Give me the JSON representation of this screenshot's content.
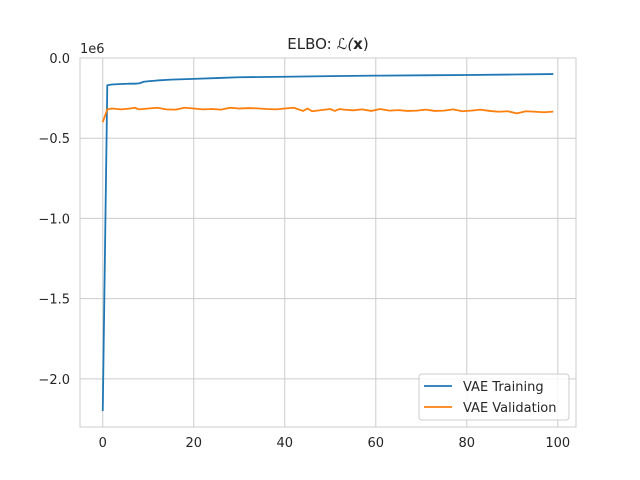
{
  "chart_data": {
    "type": "line",
    "title": "ELBO: ℒ(x)",
    "title_prefix": "ELBO: ",
    "title_math": "ℒ(",
    "title_bold": "x",
    "title_close": ")",
    "xlabel": "",
    "ylabel": "",
    "y_offset_label": "1e6",
    "xlim": [
      -5,
      104
    ],
    "ylim": [
      -2.3,
      0
    ],
    "x_ticks": [
      0,
      20,
      40,
      60,
      80,
      100
    ],
    "x_tick_labels": [
      "0",
      "20",
      "40",
      "60",
      "80",
      "100"
    ],
    "y_ticks": [
      0,
      -0.5,
      -1.0,
      -1.5,
      -2.0
    ],
    "y_tick_labels": [
      "0.0",
      "−0.5",
      "−1.0",
      "−1.5",
      "−2.0"
    ],
    "grid": true,
    "legend_position": "lower-right",
    "series": [
      {
        "name": "VAE Training",
        "color": "#1f77b4",
        "x": [
          0,
          1,
          2,
          4,
          6,
          7,
          8,
          9,
          10,
          12,
          15,
          20,
          25,
          30,
          40,
          50,
          60,
          70,
          80,
          90,
          99
        ],
        "y": [
          -2.2,
          -0.17,
          -0.165,
          -0.162,
          -0.16,
          -0.16,
          -0.158,
          -0.148,
          -0.145,
          -0.14,
          -0.135,
          -0.13,
          -0.125,
          -0.12,
          -0.117,
          -0.113,
          -0.11,
          -0.108,
          -0.106,
          -0.103,
          -0.1
        ]
      },
      {
        "name": "VAE Validation",
        "color": "#ff7f0e",
        "x": [
          0,
          1,
          2,
          4,
          6,
          7,
          8,
          10,
          12,
          14,
          16,
          18,
          20,
          22,
          24,
          26,
          28,
          30,
          32,
          34,
          36,
          38,
          40,
          42,
          44,
          45,
          46,
          48,
          50,
          51,
          52,
          53,
          55,
          57,
          59,
          61,
          63,
          65,
          67,
          69,
          71,
          73,
          75,
          77,
          79,
          81,
          83,
          85,
          87,
          89,
          91,
          93,
          95,
          97,
          99
        ],
        "y": [
          -0.4,
          -0.32,
          -0.315,
          -0.32,
          -0.315,
          -0.31,
          -0.32,
          -0.315,
          -0.31,
          -0.32,
          -0.322,
          -0.31,
          -0.315,
          -0.32,
          -0.318,
          -0.322,
          -0.31,
          -0.315,
          -0.312,
          -0.314,
          -0.318,
          -0.32,
          -0.315,
          -0.31,
          -0.33,
          -0.315,
          -0.332,
          -0.325,
          -0.318,
          -0.33,
          -0.318,
          -0.322,
          -0.326,
          -0.32,
          -0.33,
          -0.318,
          -0.328,
          -0.325,
          -0.33,
          -0.328,
          -0.322,
          -0.33,
          -0.328,
          -0.32,
          -0.332,
          -0.328,
          -0.322,
          -0.33,
          -0.335,
          -0.332,
          -0.345,
          -0.332,
          -0.335,
          -0.338,
          -0.334
        ]
      }
    ]
  },
  "colors": {
    "background": "#ffffff",
    "grid": "#cccccc",
    "axes_edge": "#cccccc",
    "text": "#262626"
  }
}
